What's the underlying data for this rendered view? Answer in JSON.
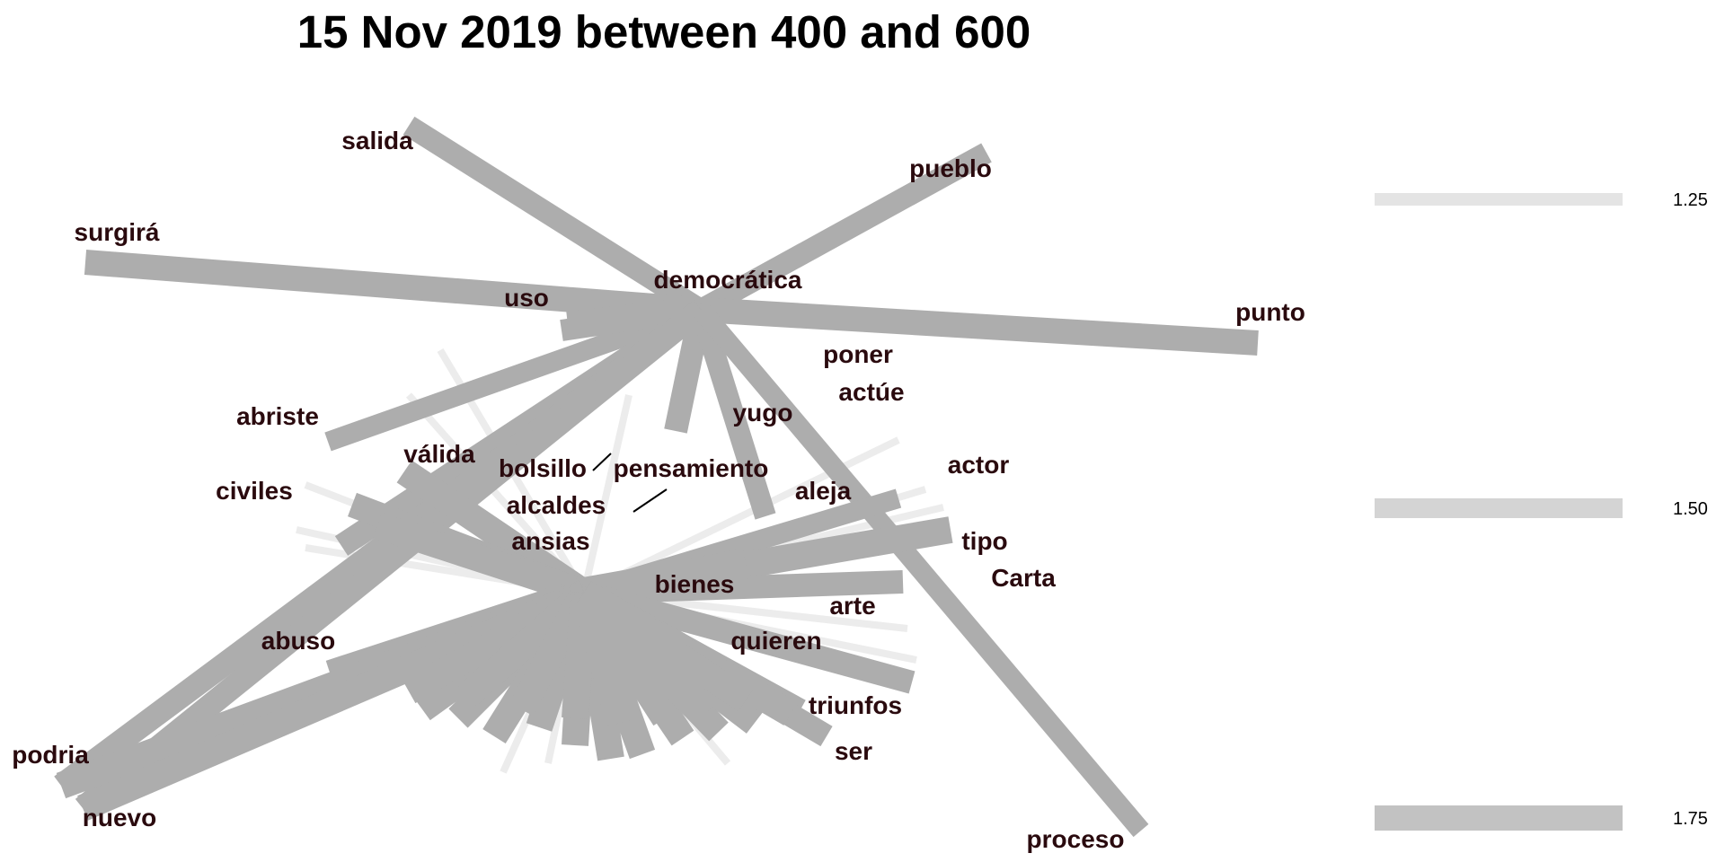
{
  "title": "15 Nov 2019 between 400 and 600",
  "colors": {
    "edge": "#adadad",
    "faint_edge": "#ececec",
    "word": "#2a0a0e"
  },
  "center_word": "democrática",
  "words": [
    "salida",
    "pueblo",
    "surgirá",
    "uso",
    "democrática",
    "punto",
    "poner",
    "actúe",
    "yugo",
    "abriste",
    "válida",
    "bolsillo",
    "pensamiento",
    "actor",
    "civiles",
    "aleja",
    "alcaldes",
    "ansias",
    "tipo",
    "Carta",
    "bienes",
    "arte",
    "abuso",
    "quieren",
    "triunfos",
    "ser",
    "podria",
    "nuevo",
    "proceso"
  ],
  "edge_legend": [
    {
      "label": "1.25",
      "color": "#e4e4e4"
    },
    {
      "label": "1.50",
      "color": "#d4d4d4"
    },
    {
      "label": "1.75",
      "color": "#c2c2c2"
    }
  ]
}
